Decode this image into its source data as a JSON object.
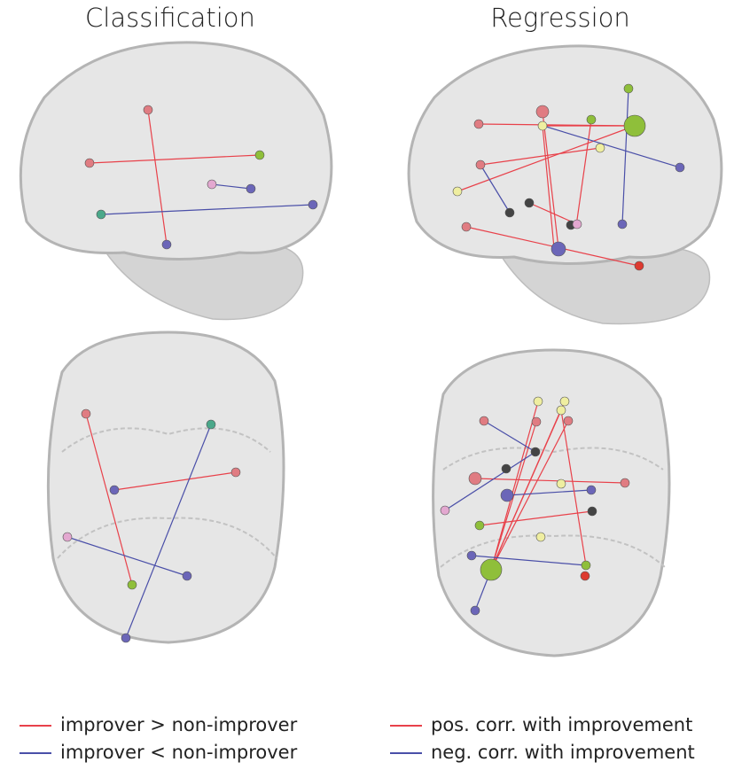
{
  "panels": [
    {
      "title": "Classification",
      "legend": [
        {
          "label": "improver > non-improver",
          "color": "#e8414a"
        },
        {
          "label": "improver < non-improver",
          "color": "#4a4fa8"
        }
      ]
    },
    {
      "title": "Regression",
      "legend": [
        {
          "label": "pos. corr. with improvement",
          "color": "#e8414a"
        },
        {
          "label": "neg. corr. with improvement",
          "color": "#4a4fa8"
        }
      ]
    }
  ]
}
